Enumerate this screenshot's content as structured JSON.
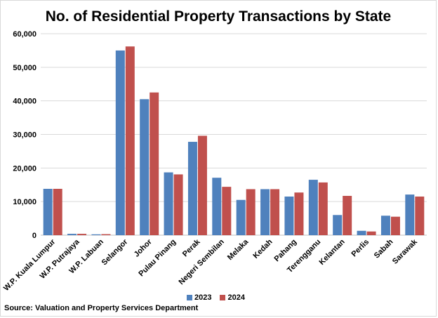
{
  "chart_data": {
    "type": "bar",
    "title": "No. of Residential Property Transactions by State",
    "categories": [
      "W.P. Kuala Lumpur",
      "W.P. Putrajaya",
      "W.P. Labuan",
      "Selangor",
      "Johor",
      "Pulau Pinang",
      "Perak",
      "Negeri Sembilan",
      "Melaka",
      "Kedah",
      "Pahang",
      "Terengganu",
      "Kelantan",
      "Perlis",
      "Sabah",
      "Sarawak"
    ],
    "series": [
      {
        "name": "2023",
        "color": "#4f81bd",
        "values": [
          13800,
          400,
          250,
          55000,
          40500,
          18700,
          27800,
          17100,
          10500,
          13700,
          11500,
          16500,
          6000,
          1300,
          5800,
          12100
        ]
      },
      {
        "name": "2024",
        "color": "#c0504d",
        "values": [
          13800,
          400,
          300,
          56200,
          42500,
          18100,
          29600,
          14400,
          13700,
          13700,
          12700,
          15700,
          11700,
          1100,
          5500,
          11500
        ]
      }
    ],
    "ylim": [
      0,
      60000
    ],
    "yticks": [
      "0",
      "10,000",
      "20,000",
      "30,000",
      "40,000",
      "50,000",
      "60,000"
    ],
    "grid": true,
    "legend": "bottom"
  },
  "source": "Source: Valuation and Property Services Department"
}
